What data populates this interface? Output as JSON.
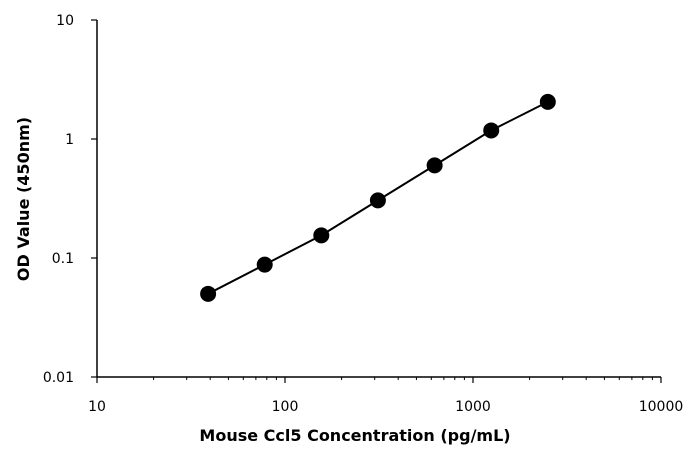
{
  "chart_data": {
    "type": "scatter",
    "title": "",
    "xlabel": "Mouse Ccl5 Concentration (pg/mL)",
    "ylabel": "OD Value (450nm)",
    "x_scale": "log",
    "y_scale": "log",
    "xlim": [
      10,
      10000
    ],
    "ylim": [
      0.01,
      10
    ],
    "x_ticks": [
      10,
      100,
      1000,
      10000
    ],
    "x_tick_labels": [
      "10",
      "100",
      "1000",
      "10000"
    ],
    "y_ticks": [
      0.01,
      0.1,
      1,
      10
    ],
    "y_tick_labels": [
      "0.01",
      "0.1",
      "1",
      "10"
    ],
    "grid": false,
    "legend": "none",
    "series": [
      {
        "x": [
          39,
          78,
          156,
          312,
          625,
          1250,
          2500
        ],
        "y": [
          0.05,
          0.088,
          0.155,
          0.305,
          0.6,
          1.18,
          2.05
        ],
        "color": "#000000",
        "connected": true
      }
    ]
  }
}
